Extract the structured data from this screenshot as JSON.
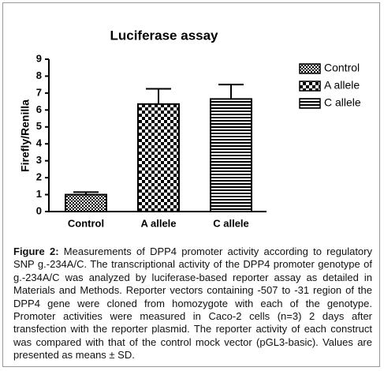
{
  "chart_data": {
    "type": "bar",
    "title": "Luciferase assay",
    "ylabel": "Firefly/Renilla",
    "categories": [
      "Control",
      "A allele",
      "C allele"
    ],
    "values": [
      1.0,
      6.35,
      6.65
    ],
    "errors": [
      0.15,
      0.9,
      0.85
    ],
    "patterns": [
      "fine-check",
      "check",
      "stripes"
    ],
    "color": "#000000",
    "ylim": [
      0,
      9
    ],
    "yticks": [
      0,
      1,
      2,
      3,
      4,
      5,
      6,
      7,
      8,
      9
    ]
  },
  "caption": {
    "label": "Figure 2:",
    "text": "Measurements of DPP4 promoter activity according to regulatory SNP g.-234A/C. The transcriptional activity of the DPP4 promoter genotype of g.-234A/C was analyzed by luciferase-based reporter assay as detailed in Materials and Methods. Reporter vectors containing -507 to -31 region of the DPP4 gene were cloned from homozygote with each of the genotype. Promoter activities were measured in Caco-2 cells (n=3) 2 days after transfection with the reporter plasmid. The reporter activity of each construct was compared with that of the control mock vector (pGL3-basic). Values are presented as means ± SD."
  }
}
